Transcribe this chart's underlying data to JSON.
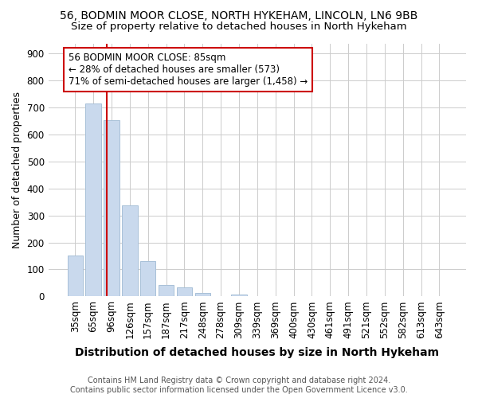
{
  "title1": "56, BODMIN MOOR CLOSE, NORTH HYKEHAM, LINCOLN, LN6 9BB",
  "title2": "Size of property relative to detached houses in North Hykeham",
  "xlabel": "Distribution of detached houses by size in North Hykeham",
  "ylabel": "Number of detached properties",
  "footer1": "Contains HM Land Registry data © Crown copyright and database right 2024.",
  "footer2": "Contains public sector information licensed under the Open Government Licence v3.0.",
  "categories": [
    "35sqm",
    "65sqm",
    "96sqm",
    "126sqm",
    "157sqm",
    "187sqm",
    "217sqm",
    "248sqm",
    "278sqm",
    "309sqm",
    "339sqm",
    "369sqm",
    "400sqm",
    "430sqm",
    "461sqm",
    "491sqm",
    "521sqm",
    "552sqm",
    "582sqm",
    "613sqm",
    "643sqm"
  ],
  "values": [
    152,
    715,
    652,
    338,
    130,
    43,
    33,
    12,
    0,
    8,
    0,
    0,
    0,
    0,
    0,
    0,
    0,
    0,
    0,
    0,
    0
  ],
  "bar_color": "#c9d9ed",
  "bar_edge_color": "#a8c0d8",
  "bar_width": 0.85,
  "red_line_x": 1.72,
  "annotation_text_line1": "56 BODMIN MOOR CLOSE: 85sqm",
  "annotation_text_line2": "← 28% of detached houses are smaller (573)",
  "annotation_text_line3": "71% of semi-detached houses are larger (1,458) →",
  "annotation_box_color": "#cc0000",
  "ylim": [
    0,
    935
  ],
  "yticks": [
    0,
    100,
    200,
    300,
    400,
    500,
    600,
    700,
    800,
    900
  ],
  "grid_color": "#cccccc",
  "background_color": "#ffffff",
  "title1_fontsize": 10,
  "title2_fontsize": 9.5,
  "xlabel_fontsize": 10,
  "ylabel_fontsize": 9,
  "tick_fontsize": 8.5,
  "footer_fontsize": 7,
  "annot_fontsize": 8.5
}
